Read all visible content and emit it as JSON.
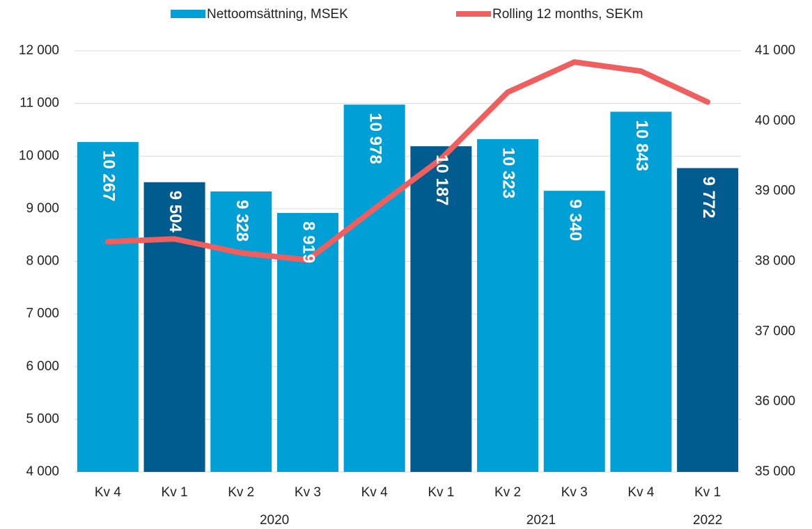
{
  "chart_data": {
    "type": "bar_line",
    "categories": [
      "Kv 4",
      "Kv 1",
      "Kv 2",
      "Kv 3",
      "Kv 4",
      "Kv 1",
      "Kv 2",
      "Kv 3",
      "Kv 4",
      "Kv 1"
    ],
    "years": [
      "2020",
      "2021",
      "2022"
    ],
    "series": [
      {
        "name": "Nettoomsättning, MSEK",
        "type": "bar",
        "color": "#00a0d6",
        "colors": [
          "#00a0d6",
          "#005b8e",
          "#00a0d6",
          "#00a0d6",
          "#00a0d6",
          "#005b8e",
          "#00a0d6",
          "#00a0d6",
          "#00a0d6",
          "#005b8e"
        ],
        "values": [
          10267,
          9504,
          9328,
          8919,
          10978,
          10187,
          10323,
          9340,
          10843,
          9772
        ],
        "value_labels": [
          "10 267",
          "9 504",
          "9 328",
          "8 919",
          "10 978",
          "10 187",
          "10 323",
          "9 340",
          "10 843",
          "9 772"
        ]
      },
      {
        "name": "Rolling 12 months, SEKm",
        "type": "line",
        "axis": "y2",
        "color": "#ee5f5f",
        "values": [
          38280,
          38320,
          38120,
          38020,
          38750,
          39460,
          40410,
          40840,
          40710,
          40270
        ]
      }
    ],
    "ylim": [
      4000,
      12000
    ],
    "yticks": [
      {
        "value": 4000,
        "label": "4 000"
      },
      {
        "value": 5000,
        "label": "5 000"
      },
      {
        "value": 6000,
        "label": "6 000"
      },
      {
        "value": 7000,
        "label": "7 000"
      },
      {
        "value": 8000,
        "label": "8 000"
      },
      {
        "value": 9000,
        "label": "9 000"
      },
      {
        "value": 10000,
        "label": "10 000"
      },
      {
        "value": 11000,
        "label": "11 000"
      },
      {
        "value": 12000,
        "label": "12 000"
      }
    ],
    "y2lim": [
      35000,
      41000
    ],
    "y2ticks": [
      {
        "value": 35000,
        "label": "35 000"
      },
      {
        "value": 36000,
        "label": "36 000"
      },
      {
        "value": 37000,
        "label": "37 000"
      },
      {
        "value": 38000,
        "label": "38 000"
      },
      {
        "value": 39000,
        "label": "39 000"
      },
      {
        "value": 40000,
        "label": "40 000"
      },
      {
        "value": 41000,
        "label": "41 000"
      }
    ],
    "grid": true,
    "legend": "top"
  }
}
